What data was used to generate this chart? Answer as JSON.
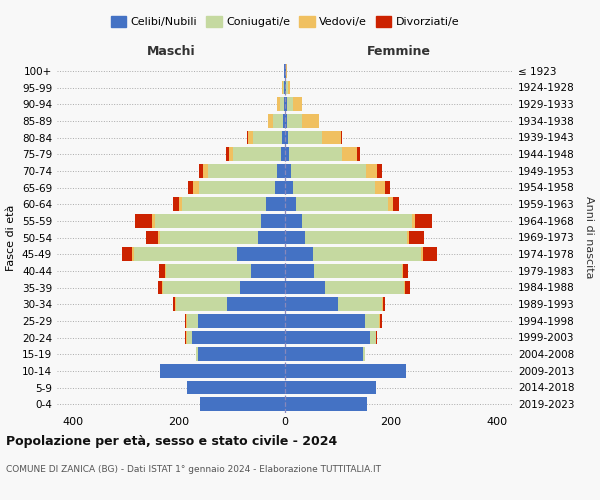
{
  "age_groups": [
    "0-4",
    "5-9",
    "10-14",
    "15-19",
    "20-24",
    "25-29",
    "30-34",
    "35-39",
    "40-44",
    "45-49",
    "50-54",
    "55-59",
    "60-64",
    "65-69",
    "70-74",
    "75-79",
    "80-84",
    "85-89",
    "90-94",
    "95-99",
    "100+"
  ],
  "birth_years": [
    "2019-2023",
    "2014-2018",
    "2009-2013",
    "2004-2008",
    "1999-2003",
    "1994-1998",
    "1989-1993",
    "1984-1988",
    "1979-1983",
    "1974-1978",
    "1969-1973",
    "1964-1968",
    "1959-1963",
    "1954-1958",
    "1949-1953",
    "1944-1948",
    "1939-1943",
    "1934-1938",
    "1929-1933",
    "1924-1928",
    "≤ 1923"
  ],
  "colors": {
    "celibi": "#4472c4",
    "coniugati": "#c5d9a0",
    "vedovi": "#f0c060",
    "divorziati": "#cc2200"
  },
  "males": {
    "celibi": [
      160,
      185,
      235,
      165,
      175,
      165,
      110,
      85,
      65,
      90,
      50,
      45,
      35,
      18,
      15,
      8,
      5,
      3,
      2,
      1,
      1
    ],
    "coniugati": [
      0,
      0,
      0,
      2,
      10,
      20,
      95,
      145,
      160,
      195,
      185,
      200,
      160,
      145,
      130,
      90,
      55,
      20,
      8,
      2,
      0
    ],
    "vedovi": [
      0,
      0,
      0,
      0,
      2,
      2,
      2,
      2,
      2,
      3,
      5,
      5,
      5,
      10,
      10,
      8,
      10,
      10,
      5,
      2,
      0
    ],
    "divorziati": [
      0,
      0,
      0,
      0,
      2,
      2,
      5,
      8,
      10,
      20,
      22,
      32,
      12,
      10,
      8,
      5,
      2,
      0,
      0,
      0,
      0
    ]
  },
  "females": {
    "nubili": [
      155,
      172,
      228,
      148,
      160,
      150,
      100,
      75,
      55,
      52,
      38,
      32,
      20,
      15,
      12,
      8,
      5,
      4,
      3,
      2,
      1
    ],
    "coniugati": [
      0,
      0,
      0,
      2,
      12,
      28,
      82,
      150,
      165,
      205,
      192,
      208,
      175,
      155,
      140,
      100,
      65,
      28,
      12,
      3,
      0
    ],
    "vedovi": [
      0,
      0,
      0,
      0,
      0,
      2,
      2,
      2,
      2,
      4,
      4,
      6,
      8,
      18,
      22,
      28,
      35,
      32,
      18,
      5,
      3
    ],
    "divorziati": [
      0,
      0,
      0,
      0,
      2,
      2,
      5,
      8,
      10,
      25,
      28,
      32,
      12,
      10,
      8,
      5,
      2,
      0,
      0,
      0,
      0
    ]
  },
  "xlim": 430,
  "title": "Popolazione per età, sesso e stato civile - 2024",
  "subtitle": "COMUNE DI ZANICA (BG) - Dati ISTAT 1° gennaio 2024 - Elaborazione TUTTITALIA.IT",
  "xlabel_left": "Maschi",
  "xlabel_right": "Femmine",
  "ylabel_left": "Fasce di età",
  "ylabel_right": "Anni di nascita",
  "legend_labels": [
    "Celibi/Nubili",
    "Coniugati/e",
    "Vedovi/e",
    "Divorziati/e"
  ],
  "bg_color": "#f8f8f8",
  "plot_bg": "#f8f8f8",
  "xticks": [
    -400,
    -200,
    0,
    200,
    400
  ]
}
